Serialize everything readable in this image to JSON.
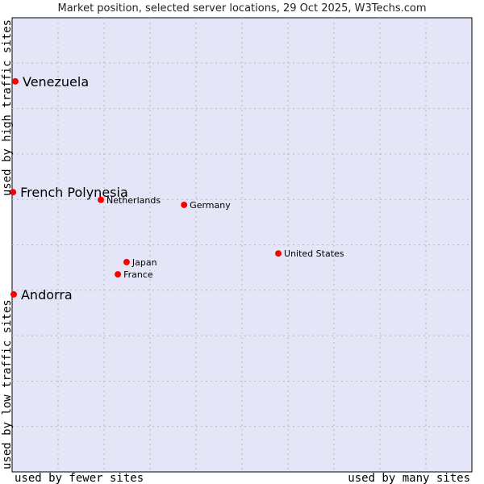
{
  "chart_data": {
    "type": "scatter",
    "title": "Market position, selected server locations, 29 Oct 2025, W3Techs.com",
    "xlabel_left": "used by fewer sites",
    "xlabel_right": "used by many sites",
    "ylabel_bottom": "used by low traffic sites",
    "ylabel_top": "used by high traffic sites",
    "xlim": [
      0,
      100
    ],
    "ylim": [
      0,
      100
    ],
    "grid": true,
    "grid_divisions": 10,
    "point_color": "#ff0000",
    "background_color": "#e4e6f8",
    "points": [
      {
        "label": "Venezuela",
        "x": 0.7,
        "y": 86.0,
        "highlight": true
      },
      {
        "label": "French Polynesia",
        "x": 0.2,
        "y": 61.6,
        "highlight": true
      },
      {
        "label": "Netherlands",
        "x": 19.3,
        "y": 59.9,
        "highlight": false
      },
      {
        "label": "Germany",
        "x": 37.4,
        "y": 58.8,
        "highlight": false
      },
      {
        "label": "United States",
        "x": 57.9,
        "y": 48.1,
        "highlight": false
      },
      {
        "label": "Japan",
        "x": 24.9,
        "y": 46.2,
        "highlight": false
      },
      {
        "label": "France",
        "x": 23.0,
        "y": 43.5,
        "highlight": false
      },
      {
        "label": "Andorra",
        "x": 0.35,
        "y": 39.1,
        "highlight": true
      }
    ]
  }
}
